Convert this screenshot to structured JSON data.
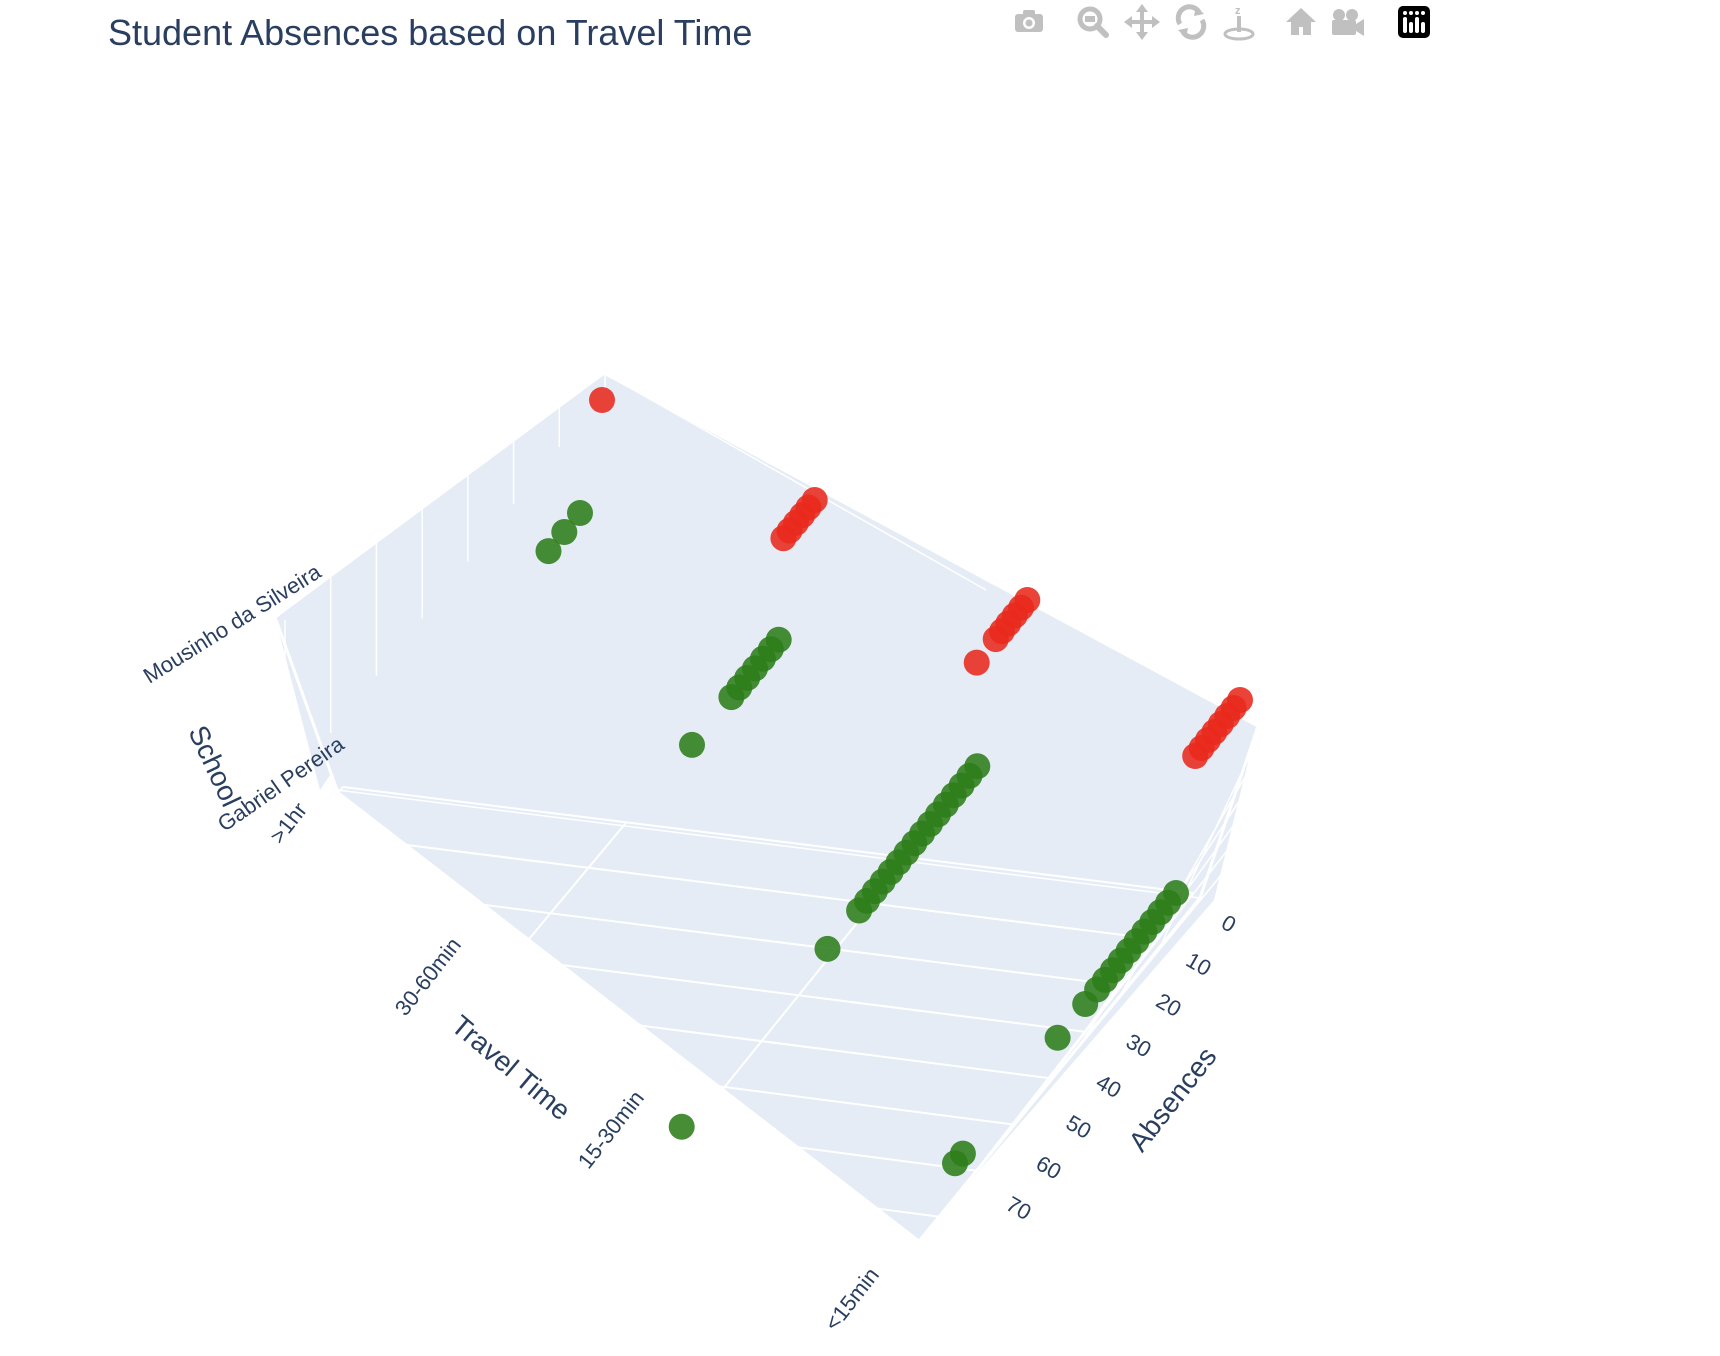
{
  "chart_data": {
    "type": "scatter3d",
    "title": "Student Absences based on Travel Time",
    "axes": {
      "x": {
        "title": "Absences",
        "tick_labels": [
          "0",
          "10",
          "20",
          "30",
          "40",
          "50",
          "60",
          "70"
        ]
      },
      "y": {
        "title": "Travel Time",
        "categories": [
          "<15min",
          "15-30min",
          "30-60min",
          ">1hr"
        ]
      },
      "z": {
        "title": "School",
        "categories": [
          "Gabriel Pereira",
          "Mousinho da Silveira"
        ]
      }
    },
    "series": [
      {
        "school": "Gabriel Pereira",
        "color": "#2e7d1a",
        "points": [
          {
            "travel": "<15min",
            "absences": [
              0,
              2,
              4,
              6,
              8,
              10,
              12,
              14,
              16,
              18,
              20,
              23,
              30,
              54,
              56
            ]
          },
          {
            "travel": "15-30min",
            "absences": [
              0,
              2,
              4,
              6,
              8,
              10,
              12,
              14,
              16,
              18,
              20,
              22,
              24,
              26,
              28,
              30,
              38,
              75
            ]
          },
          {
            "travel": "30-60min",
            "absences": [
              0,
              2,
              4,
              6,
              8,
              10,
              12,
              22
            ]
          },
          {
            "travel": ">1hr",
            "absences": [
              0,
              4,
              8
            ]
          }
        ]
      },
      {
        "school": "Mousinho da Silveira",
        "color": "#e8291c",
        "points": [
          {
            "travel": "<15min",
            "absences": [
              0,
              2,
              4,
              6,
              8,
              10,
              12,
              14
            ]
          },
          {
            "travel": "15-30min",
            "absences": [
              0,
              2,
              4,
              6,
              8,
              10,
              16
            ]
          },
          {
            "travel": "30-60min",
            "absences": [
              0,
              2,
              4,
              6,
              8,
              10
            ]
          },
          {
            "travel": ">1hr",
            "absences": [
              0
            ]
          }
        ]
      }
    ],
    "grid": true,
    "background": "#e5ecf6"
  },
  "modebar": {
    "buttons": [
      "camera-icon",
      "zoom-icon",
      "pan-icon",
      "orbit-rotation-icon",
      "turntable-rotation-icon",
      "reset-camera-icon",
      "last-save-camera-icon",
      "plotly-logo-icon"
    ]
  }
}
